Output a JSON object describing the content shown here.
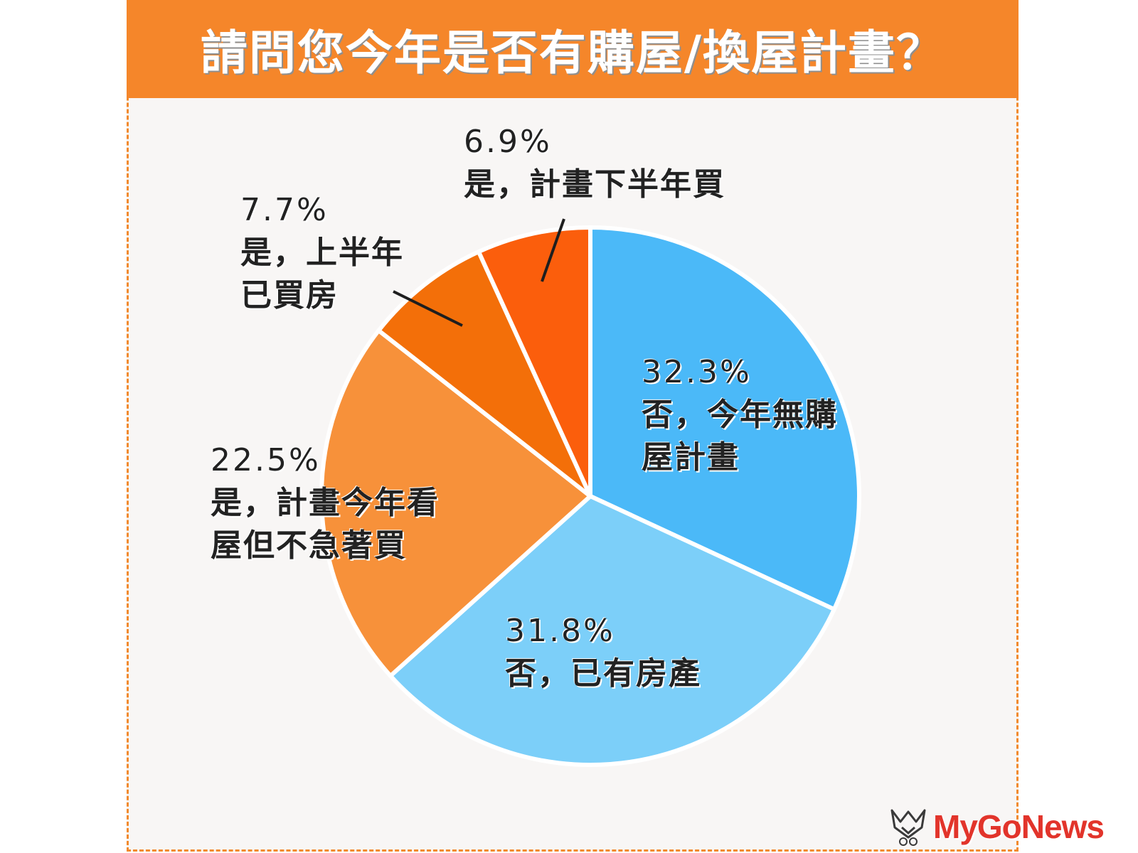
{
  "chart_data": {
    "type": "pie",
    "title": "請問您今年是否有購屋/換屋計畫？",
    "slices": [
      {
        "label": "否，今年無購\n屋計畫",
        "value": 32.3,
        "value_text": "32.3%",
        "color": "#4bb9f8"
      },
      {
        "label": "否，已有房產",
        "value": 31.8,
        "value_text": "31.8%",
        "color": "#7ccff9"
      },
      {
        "label": "是，計畫今年看\n屋但不急著買",
        "value": 22.5,
        "value_text": "22.5%",
        "color": "#f7913a"
      },
      {
        "label": "是，上半年\n已買房",
        "value": 7.7,
        "value_text": "7.7%",
        "color": "#f36f09"
      },
      {
        "label": "是，計畫下半年買",
        "value": 6.9,
        "value_text": "6.9%",
        "color": "#fb5e0c"
      }
    ]
  },
  "colors": {
    "header_bg": "#f5862a",
    "border": "#f28a2e",
    "panel_bg": "#f8f6f5"
  },
  "watermark": {
    "text": "MyGoNews",
    "icon": "mygonews-logo-icon"
  }
}
